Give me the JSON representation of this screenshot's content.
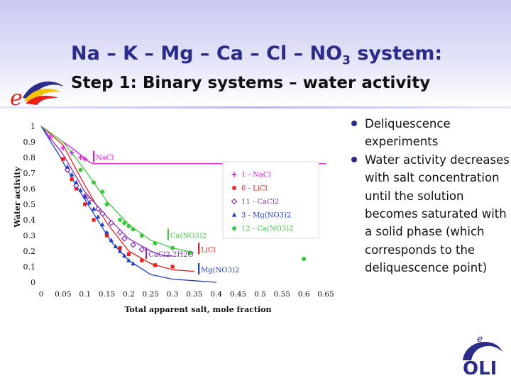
{
  "slide": {
    "title_main": "Na – K – Mg – Ca – Cl – NO",
    "title_sub": "3",
    "title_tail": " system:",
    "subtitle": "Step 1: Binary systems – water activity",
    "bullets": [
      "Deliquescence experiments",
      "Water activity decreases with salt concentration until the solution becomes saturated with a solid phase (which corresponds to the deliquescence point)"
    ],
    "logo_e_text": "e",
    "logo_oli_text": "OLI"
  },
  "chart_data": {
    "type": "scatter",
    "xlabel": "Total apparent salt, mole fraction",
    "ylabel": "Water activity",
    "xlim": [
      0,
      0.65
    ],
    "ylim": [
      0,
      1
    ],
    "xticks": [
      "0",
      "0.05",
      "0.1",
      "0.15",
      "0.2",
      "0.25",
      "0.3",
      "0.35",
      "0.4",
      "0.45",
      "0.5",
      "0.55",
      "0.6",
      "0.65"
    ],
    "yticks": [
      "0",
      "0.1",
      "0.2",
      "0.3",
      "0.4",
      "0.5",
      "0.6",
      "0.7",
      "0.8",
      "0.9",
      "1"
    ],
    "grid": false,
    "legend_position": "right",
    "series": [
      {
        "name": "1 - NaCl",
        "color": "#d81bd8",
        "marker": "plus",
        "points": [
          [
            0.02,
            0.93
          ],
          [
            0.05,
            0.86
          ],
          [
            0.07,
            0.83
          ],
          [
            0.09,
            0.8
          ],
          [
            0.1,
            0.79
          ]
        ]
      },
      {
        "name": "6 - LiCl",
        "color": "#e8201c",
        "marker": "square",
        "points": [
          [
            0.05,
            0.79
          ],
          [
            0.07,
            0.66
          ],
          [
            0.08,
            0.6
          ],
          [
            0.1,
            0.5
          ],
          [
            0.12,
            0.4
          ],
          [
            0.15,
            0.3
          ],
          [
            0.18,
            0.22
          ],
          [
            0.2,
            0.18
          ],
          [
            0.23,
            0.14
          ],
          [
            0.26,
            0.11
          ],
          [
            0.3,
            0.1
          ]
        ]
      },
      {
        "name": "11 - CaCl2",
        "color": "#8b2bb0",
        "marker": "diamond",
        "points": [
          [
            0.06,
            0.72
          ],
          [
            0.08,
            0.62
          ],
          [
            0.1,
            0.55
          ],
          [
            0.11,
            0.53
          ],
          [
            0.13,
            0.47
          ],
          [
            0.14,
            0.44
          ],
          [
            0.16,
            0.38
          ],
          [
            0.18,
            0.32
          ],
          [
            0.19,
            0.28
          ],
          [
            0.21,
            0.24
          ],
          [
            0.23,
            0.21
          ]
        ]
      },
      {
        "name": "3 - Mg(NO3)2",
        "color": "#1c3fc8",
        "marker": "triangle",
        "points": [
          [
            0.06,
            0.74
          ],
          [
            0.07,
            0.69
          ],
          [
            0.08,
            0.64
          ],
          [
            0.09,
            0.59
          ],
          [
            0.1,
            0.55
          ],
          [
            0.11,
            0.51
          ],
          [
            0.12,
            0.47
          ],
          [
            0.13,
            0.42
          ],
          [
            0.14,
            0.37
          ],
          [
            0.15,
            0.32
          ],
          [
            0.16,
            0.27
          ],
          [
            0.17,
            0.23
          ],
          [
            0.18,
            0.2
          ],
          [
            0.19,
            0.17
          ],
          [
            0.2,
            0.14
          ],
          [
            0.21,
            0.12
          ]
        ]
      },
      {
        "name": "12 - Ca(NO3)2",
        "color": "#3cc83c",
        "marker": "circle",
        "points": [
          [
            0.09,
            0.72
          ],
          [
            0.12,
            0.64
          ],
          [
            0.14,
            0.58
          ],
          [
            0.15,
            0.5
          ],
          [
            0.18,
            0.4
          ],
          [
            0.19,
            0.38
          ],
          [
            0.2,
            0.36
          ],
          [
            0.21,
            0.34
          ],
          [
            0.23,
            0.3
          ],
          [
            0.26,
            0.25
          ],
          [
            0.3,
            0.22
          ],
          [
            0.34,
            0.19
          ],
          [
            0.6,
            0.15
          ]
        ]
      }
    ],
    "model_curves": [
      {
        "color": "#d81bd8",
        "points": [
          [
            0,
            1
          ],
          [
            0.04,
            0.92
          ],
          [
            0.08,
            0.84
          ],
          [
            0.11,
            0.77
          ],
          [
            0.12,
            0.76
          ],
          [
            0.65,
            0.76
          ]
        ]
      },
      {
        "color": "#e8201c",
        "points": [
          [
            0,
            1
          ],
          [
            0.05,
            0.88
          ],
          [
            0.1,
            0.62
          ],
          [
            0.15,
            0.38
          ],
          [
            0.2,
            0.2
          ],
          [
            0.25,
            0.12
          ],
          [
            0.3,
            0.08
          ],
          [
            0.35,
            0.07
          ]
        ]
      },
      {
        "color": "#8b2bb0",
        "points": [
          [
            0,
            1
          ],
          [
            0.05,
            0.82
          ],
          [
            0.1,
            0.58
          ],
          [
            0.15,
            0.42
          ],
          [
            0.2,
            0.28
          ],
          [
            0.25,
            0.2
          ],
          [
            0.28,
            0.17
          ],
          [
            0.3,
            0.17
          ]
        ]
      },
      {
        "color": "#1c3fc8",
        "points": [
          [
            0,
            1
          ],
          [
            0.04,
            0.82
          ],
          [
            0.08,
            0.62
          ],
          [
            0.12,
            0.44
          ],
          [
            0.16,
            0.26
          ],
          [
            0.2,
            0.14
          ],
          [
            0.25,
            0.05
          ],
          [
            0.3,
            0.02
          ],
          [
            0.35,
            0.01
          ],
          [
            0.4,
            0.0
          ]
        ]
      },
      {
        "color": "#3cc83c",
        "points": [
          [
            0,
            1
          ],
          [
            0.05,
            0.9
          ],
          [
            0.1,
            0.72
          ],
          [
            0.15,
            0.52
          ],
          [
            0.2,
            0.37
          ],
          [
            0.25,
            0.27
          ],
          [
            0.3,
            0.22
          ],
          [
            0.35,
            0.19
          ]
        ]
      }
    ],
    "annotations": [
      {
        "text": "NaCl",
        "x": 0.12,
        "y": 0.77,
        "color": "#d81bd8"
      },
      {
        "text": "Ca(NO3)2",
        "x": 0.29,
        "y": 0.27,
        "color": "#3cc83c"
      },
      {
        "text": "CaCl2.2H2O",
        "x": 0.24,
        "y": 0.15,
        "color": "#8b2bb0"
      },
      {
        "text": "LiCl",
        "x": 0.36,
        "y": 0.18,
        "color": "#e8201c"
      },
      {
        "text": "Mg(NO3)2",
        "x": 0.36,
        "y": 0.05,
        "color": "#1c3fc8"
      }
    ]
  }
}
